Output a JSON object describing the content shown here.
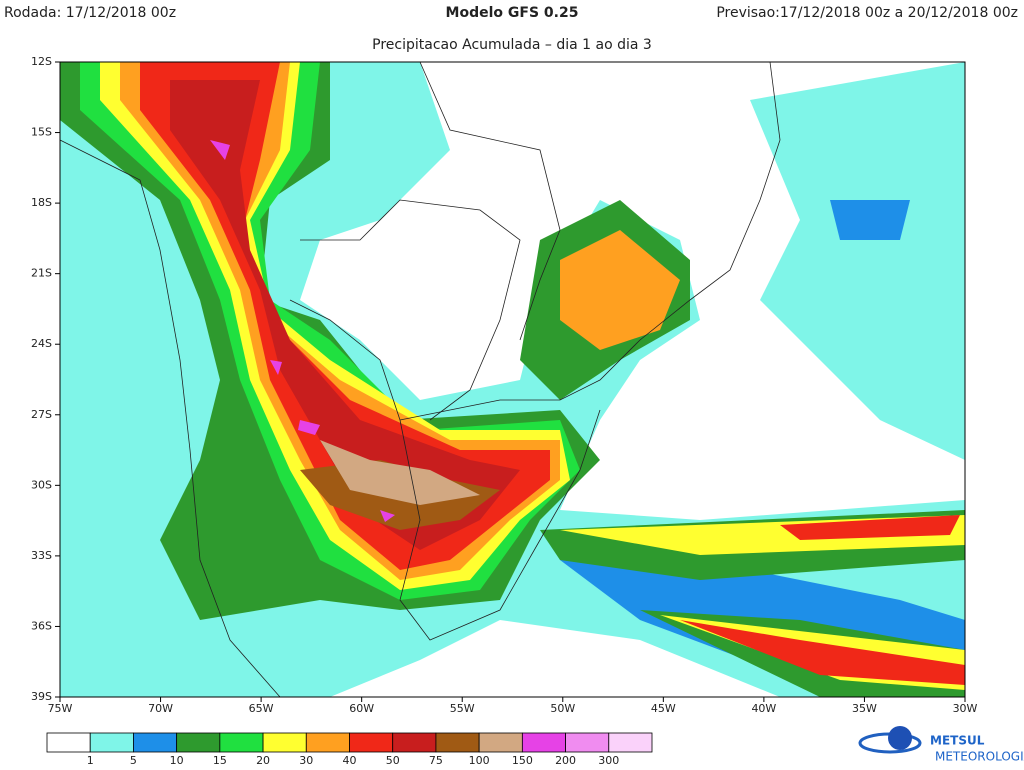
{
  "header": {
    "run": "Rodada: 17/12/2018 00z",
    "model": "Modelo GFS 0.25",
    "forecast": "Previsao:17/12/2018 00z a 20/12/2018 00z",
    "subtitle": "Precipitacao Acumulada – dia 1 ao dia 3"
  },
  "map": {
    "lat_labels": [
      "12S",
      "15S",
      "18S",
      "21S",
      "24S",
      "27S",
      "30S",
      "33S",
      "36S",
      "39S"
    ],
    "lon_labels": [
      "75W",
      "70W",
      "65W",
      "60W",
      "55W",
      "50W",
      "45W",
      "40W",
      "35W",
      "30W"
    ]
  },
  "legend": {
    "colors": [
      "#ffffff",
      "#7ff5e8",
      "#1e8fe8",
      "#2e9a2e",
      "#20e040",
      "#ffff30",
      "#ffa020",
      "#f02818",
      "#c81e1e",
      "#a05a14",
      "#d2a882",
      "#e642e6",
      "#f08cf0",
      "#fad2fa"
    ],
    "labels": [
      "1",
      "5",
      "10",
      "15",
      "20",
      "30",
      "40",
      "50",
      "75",
      "100",
      "150",
      "200",
      "300"
    ]
  },
  "logo": {
    "name": "METSUL",
    "tagline": "METEOROLOGIA"
  }
}
